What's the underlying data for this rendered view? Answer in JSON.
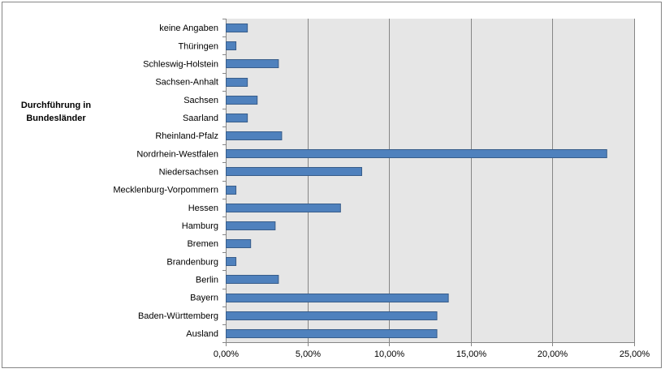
{
  "chart_data": {
    "type": "bar",
    "orientation": "horizontal",
    "title": "",
    "ylabel": "Durchführung in Bundesländer",
    "ylabel_lines": [
      "Durchführung in",
      "Bundesländer"
    ],
    "xlabel": "",
    "categories": [
      "Ausland",
      "Baden-Württemberg",
      "Bayern",
      "Berlin",
      "Brandenburg",
      "Bremen",
      "Hamburg",
      "Hessen",
      "Mecklenburg-Vorpommern",
      "Niedersachsen",
      "Nordrhein-Westfalen",
      "Rheinland-Pfalz",
      "Saarland",
      "Sachsen",
      "Sachsen-Anhalt",
      "Schleswig-Holstein",
      "Thüringen",
      "keine Angaben"
    ],
    "values": [
      12.9,
      12.9,
      13.6,
      3.2,
      0.6,
      1.5,
      3.0,
      7.0,
      0.6,
      8.3,
      23.3,
      3.4,
      1.3,
      1.9,
      1.3,
      3.2,
      0.6,
      1.3
    ],
    "xlim": [
      0,
      25
    ],
    "x_ticks": [
      0,
      5,
      10,
      15,
      20,
      25
    ],
    "x_tick_labels": [
      "0,00%",
      "5,00%",
      "10,00%",
      "15,00%",
      "20,00%",
      "25,00%"
    ],
    "grid": true,
    "legend": "none",
    "colors": {
      "bar_fill": "#4f81bd",
      "bar_stroke": "#385d8a",
      "plot_background": "#e6e6e6",
      "gridline": "#868686",
      "frame": "#868686"
    }
  }
}
